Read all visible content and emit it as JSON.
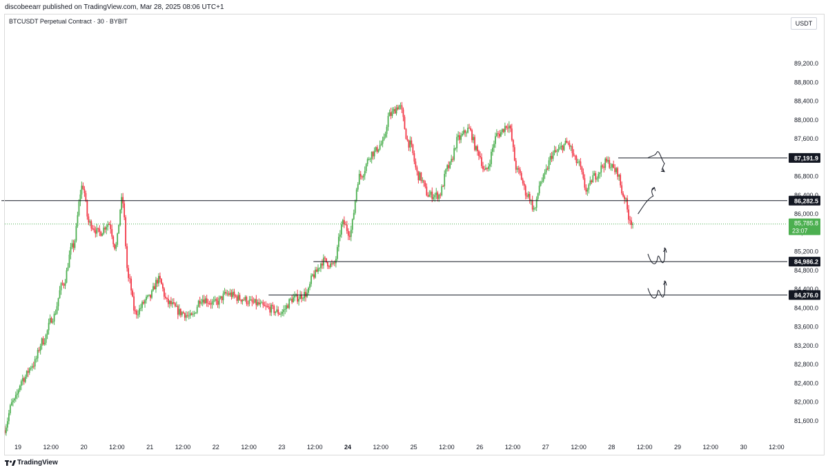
{
  "header": {
    "published": "discobeearr published on TradingView.com, Mar 28, 2025 08:06 UTC+1",
    "symbol": "BTCUSDT Perpetual Contract · 30 · BYBIT",
    "currency": "USDT"
  },
  "footer": {
    "brand": "TradingView"
  },
  "colors": {
    "up": "#4caf50",
    "down": "#f23645",
    "line": "#131722",
    "last": "#4caf50",
    "grid": "#ffffff"
  },
  "chart_data": {
    "type": "candlestick",
    "title": "BTCUSDT Perpetual Contract · 30 · BYBIT",
    "ylim": [
      81200,
      89700
    ],
    "y_ticks": [
      81600,
      82000,
      82400,
      82800,
      83200,
      83600,
      84000,
      84400,
      84800,
      85200,
      85600,
      86000,
      86400,
      86800,
      87200,
      87600,
      88000,
      88400,
      88800,
      89200
    ],
    "y_tick_labels": [
      "81,600.0",
      "82,000.0",
      "82,400.0",
      "82,800.0",
      "83,200.0",
      "83,600.0",
      "84,000.0",
      "84,400.0",
      "84,800.0",
      "85,200.0",
      "85,600.0",
      "86,000.0",
      "86,400.0",
      "86,800.0",
      "87,200.0",
      "87,600.0",
      "88,000.0",
      "88,400.0",
      "88,800.0",
      "89,200.0"
    ],
    "x_ticks": [
      {
        "label": "19",
        "day": 19.0
      },
      {
        "label": "12:00",
        "day": 19.5
      },
      {
        "label": "20",
        "day": 20.0
      },
      {
        "label": "12:00",
        "day": 20.5
      },
      {
        "label": "21",
        "day": 21.0
      },
      {
        "label": "12:00",
        "day": 21.5
      },
      {
        "label": "22",
        "day": 22.0
      },
      {
        "label": "12:00",
        "day": 22.5
      },
      {
        "label": "23",
        "day": 23.0
      },
      {
        "label": "12:00",
        "day": 23.5
      },
      {
        "label": "24",
        "day": 24.0,
        "bold": true
      },
      {
        "label": "12:00",
        "day": 24.5
      },
      {
        "label": "25",
        "day": 25.0
      },
      {
        "label": "12:00",
        "day": 25.5
      },
      {
        "label": "26",
        "day": 26.0
      },
      {
        "label": "12:00",
        "day": 26.5
      },
      {
        "label": "27",
        "day": 27.0
      },
      {
        "label": "12:00",
        "day": 27.5
      },
      {
        "label": "28",
        "day": 28.0
      },
      {
        "label": "12:00",
        "day": 28.5
      },
      {
        "label": "29",
        "day": 29.0
      },
      {
        "label": "12:00",
        "day": 29.5
      },
      {
        "label": "30",
        "day": 30.0
      },
      {
        "label": "12:00",
        "day": 30.5
      }
    ],
    "anchors": [
      {
        "day": 18.8,
        "price": 81400
      },
      {
        "day": 18.95,
        "price": 82000
      },
      {
        "day": 19.1,
        "price": 82500
      },
      {
        "day": 19.25,
        "price": 82800
      },
      {
        "day": 19.4,
        "price": 83300
      },
      {
        "day": 19.55,
        "price": 83800
      },
      {
        "day": 19.7,
        "price": 84500
      },
      {
        "day": 19.85,
        "price": 85300
      },
      {
        "day": 20.0,
        "price": 86600
      },
      {
        "day": 20.1,
        "price": 85800
      },
      {
        "day": 20.25,
        "price": 85600
      },
      {
        "day": 20.4,
        "price": 85800
      },
      {
        "day": 20.5,
        "price": 85300
      },
      {
        "day": 20.6,
        "price": 86300
      },
      {
        "day": 20.7,
        "price": 84600
      },
      {
        "day": 20.8,
        "price": 83900
      },
      {
        "day": 21.0,
        "price": 84200
      },
      {
        "day": 21.15,
        "price": 84600
      },
      {
        "day": 21.3,
        "price": 84100
      },
      {
        "day": 21.5,
        "price": 83900
      },
      {
        "day": 21.65,
        "price": 83800
      },
      {
        "day": 21.8,
        "price": 84200
      },
      {
        "day": 22.0,
        "price": 84100
      },
      {
        "day": 22.2,
        "price": 84300
      },
      {
        "day": 22.4,
        "price": 84200
      },
      {
        "day": 22.6,
        "price": 84100
      },
      {
        "day": 22.8,
        "price": 84000
      },
      {
        "day": 23.0,
        "price": 83900
      },
      {
        "day": 23.2,
        "price": 84200
      },
      {
        "day": 23.4,
        "price": 84300
      },
      {
        "day": 23.5,
        "price": 84700
      },
      {
        "day": 23.65,
        "price": 85000
      },
      {
        "day": 23.8,
        "price": 84900
      },
      {
        "day": 23.95,
        "price": 85800
      },
      {
        "day": 24.05,
        "price": 85600
      },
      {
        "day": 24.2,
        "price": 86800
      },
      {
        "day": 24.4,
        "price": 87300
      },
      {
        "day": 24.55,
        "price": 87500
      },
      {
        "day": 24.65,
        "price": 88100
      },
      {
        "day": 24.8,
        "price": 88300
      },
      {
        "day": 24.95,
        "price": 87500
      },
      {
        "day": 25.1,
        "price": 86800
      },
      {
        "day": 25.25,
        "price": 86400
      },
      {
        "day": 25.4,
        "price": 86400
      },
      {
        "day": 25.55,
        "price": 87000
      },
      {
        "day": 25.7,
        "price": 87600
      },
      {
        "day": 25.85,
        "price": 87800
      },
      {
        "day": 26.0,
        "price": 87300
      },
      {
        "day": 26.1,
        "price": 86900
      },
      {
        "day": 26.3,
        "price": 87700
      },
      {
        "day": 26.45,
        "price": 87900
      },
      {
        "day": 26.6,
        "price": 86900
      },
      {
        "day": 26.75,
        "price": 86400
      },
      {
        "day": 26.85,
        "price": 86100
      },
      {
        "day": 26.95,
        "price": 86700
      },
      {
        "day": 27.15,
        "price": 87300
      },
      {
        "day": 27.35,
        "price": 87500
      },
      {
        "day": 27.5,
        "price": 87100
      },
      {
        "day": 27.65,
        "price": 86500
      },
      {
        "day": 27.75,
        "price": 86800
      },
      {
        "day": 27.95,
        "price": 87100
      },
      {
        "day": 28.1,
        "price": 86900
      },
      {
        "day": 28.2,
        "price": 86400
      },
      {
        "day": 28.3,
        "price": 85900
      },
      {
        "day": 28.34,
        "price": 85786
      }
    ],
    "levels": [
      {
        "price": 87191.9,
        "label": "87,191.9",
        "from_day": 28.1
      },
      {
        "price": 86282.5,
        "label": "86,282.5",
        "from_day": 18.75
      },
      {
        "price": 84986.2,
        "label": "84,986.2",
        "from_day": 23.48
      },
      {
        "price": 84276.0,
        "label": "84,276.0",
        "from_day": 22.8
      }
    ],
    "last_price": {
      "price": 85785.8,
      "label": "85,785.8",
      "countdown": "23:07"
    },
    "scenario_arrows": [
      {
        "name": "down-scenario-arrow",
        "start": [
          28.55,
          87191.9
        ],
        "end": [
          28.8,
          86900
        ],
        "shape": "wave-down"
      },
      {
        "name": "up-scenario-arrow",
        "start": [
          28.4,
          86000
        ],
        "end": [
          28.65,
          86560
        ],
        "shape": "arc-up"
      },
      {
        "name": "bounce-arrow-84986",
        "start": [
          28.55,
          85150
        ],
        "end": [
          28.82,
          85250
        ],
        "shape": "w-up"
      },
      {
        "name": "bounce-arrow-84276",
        "start": [
          28.55,
          84420
        ],
        "end": [
          28.82,
          84550
        ],
        "shape": "w-up"
      }
    ]
  }
}
